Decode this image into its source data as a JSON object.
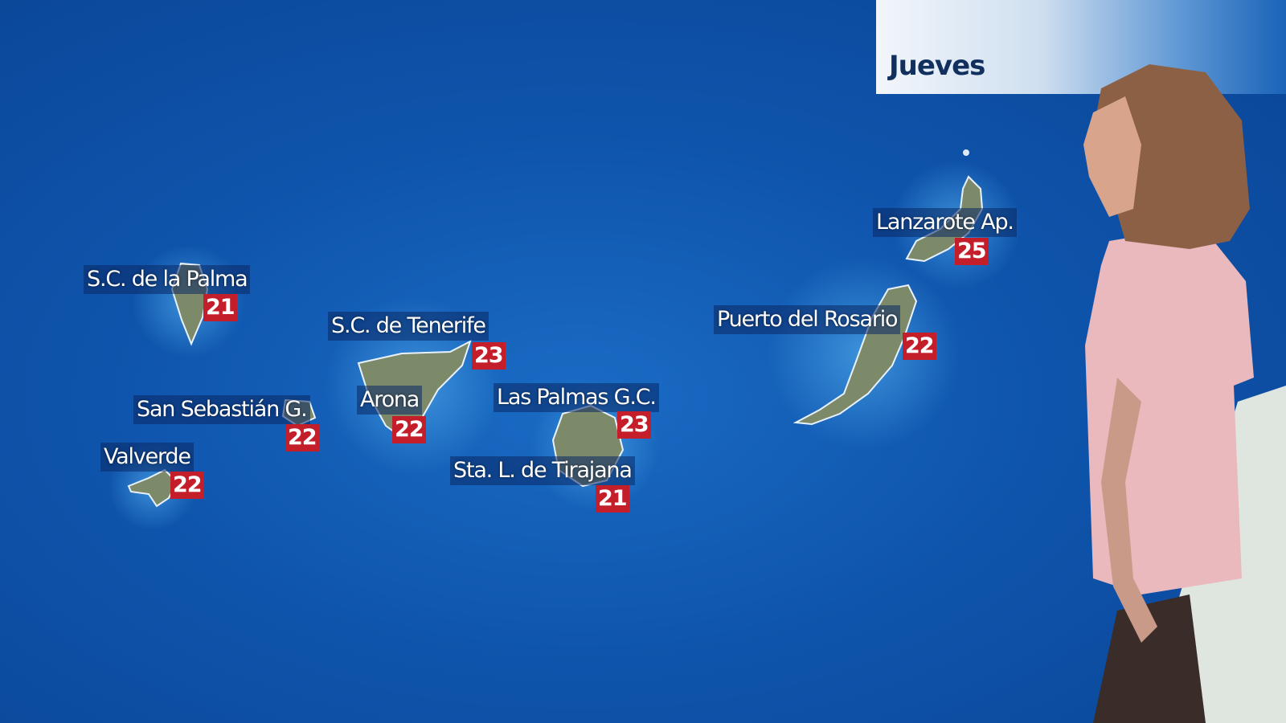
{
  "header": {
    "day": "Jueves"
  },
  "colors": {
    "sea": "#0f55ad",
    "temp_box": "#c41e2a",
    "land": "#7d8a6a"
  },
  "cities": [
    {
      "name": "S.C. de la Palma",
      "temp": "21"
    },
    {
      "name": "S.C. de Tenerife",
      "temp": "23"
    },
    {
      "name": "San Sebastián G.",
      "temp": "22"
    },
    {
      "name": "Arona",
      "temp": "22"
    },
    {
      "name": "Valverde",
      "temp": "22"
    },
    {
      "name": "Las Palmas G.C.",
      "temp": "23"
    },
    {
      "name": "Sta. L. de Tirajana",
      "temp": "21"
    },
    {
      "name": "Puerto del Rosario",
      "temp": "22"
    },
    {
      "name": "Lanzarote Ap.",
      "temp": "25"
    }
  ]
}
